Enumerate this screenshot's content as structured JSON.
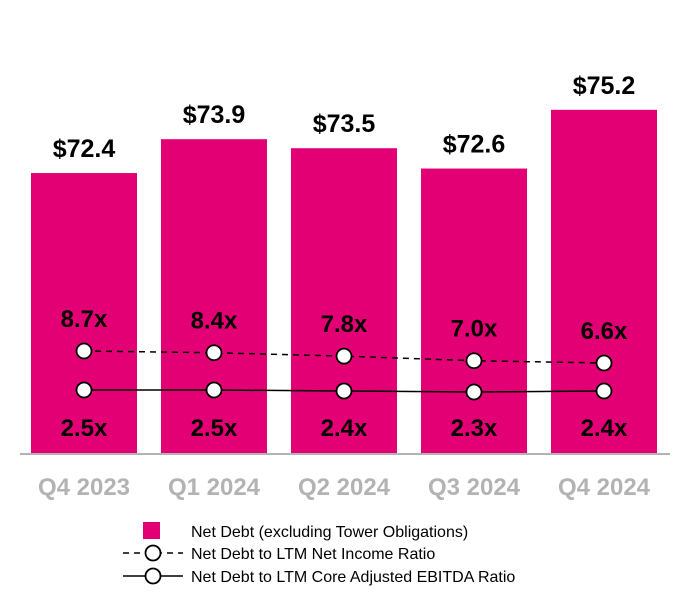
{
  "chart_data": {
    "type": "bar",
    "categories": [
      "Q4 2023",
      "Q1 2024",
      "Q2 2024",
      "Q3 2024",
      "Q4 2024"
    ],
    "series": [
      {
        "name": "Net Debt (excluding Tower Obligations)",
        "kind": "bar",
        "values": [
          72.4,
          73.9,
          73.5,
          72.6,
          75.2
        ],
        "labels": [
          "$72.4",
          "$73.9",
          "$73.5",
          "$72.6",
          "$75.2"
        ],
        "color": "#e20074"
      },
      {
        "name": "Net Debt to LTM Net Income Ratio",
        "kind": "line",
        "style": "dashed",
        "values": [
          8.7,
          8.4,
          7.8,
          7.0,
          6.6
        ],
        "labels": [
          "8.7x",
          "8.4x",
          "7.8x",
          "7.0x",
          "6.6x"
        ],
        "color": "#000000"
      },
      {
        "name": "Net Debt to LTM Core Adjusted EBITDA Ratio",
        "kind": "line",
        "style": "solid",
        "values": [
          2.5,
          2.5,
          2.4,
          2.3,
          2.4
        ],
        "labels": [
          "2.5x",
          "2.5x",
          "2.4x",
          "2.3x",
          "2.4x"
        ],
        "color": "#000000"
      }
    ],
    "bar_ylim": [
      0,
      78
    ],
    "ratio_ylim": [
      0,
      10
    ],
    "legend_position": "bottom-center",
    "grid": false,
    "axis_color": "#b3b3b3",
    "tick_label_color": "#b3b3b3"
  }
}
